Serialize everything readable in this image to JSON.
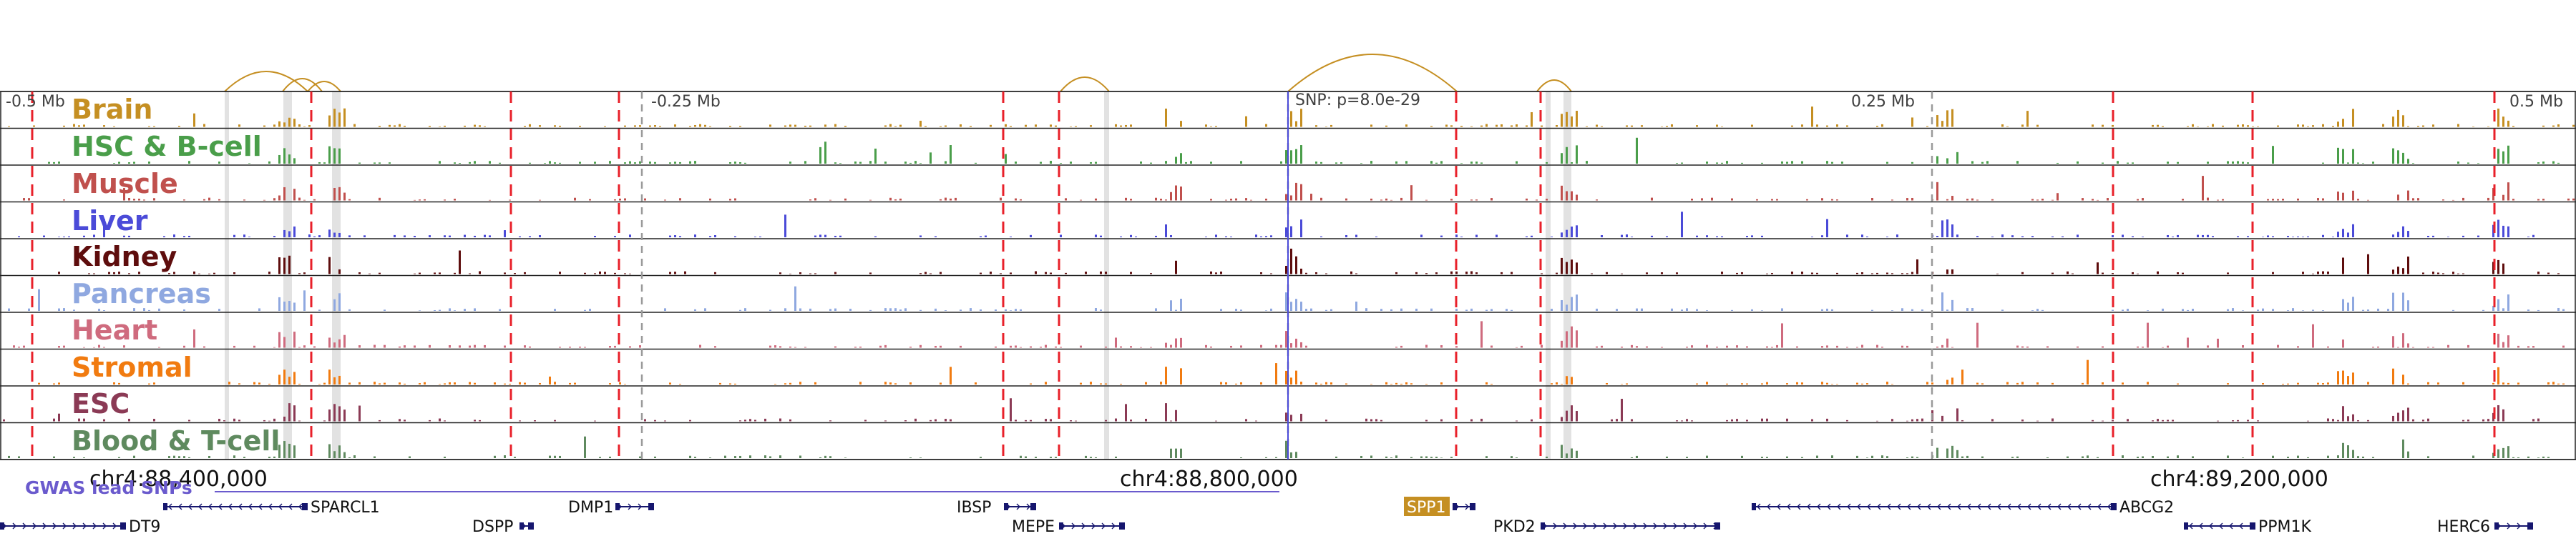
{
  "window": {
    "background": "#ffffff"
  },
  "scale": {
    "left_label": "-0.5 Mb",
    "minus_quarter_label": "-0.25 Mb",
    "plus_quarter_label": "0.25 Mb",
    "right_label": "0.5 Mb",
    "snp_label": "SNP: p=8.0e-29"
  },
  "tracks": [
    {
      "label": "Brain",
      "color": "#c58f22"
    },
    {
      "label": "HSC & B-cell",
      "color": "#4a9e4a"
    },
    {
      "label": "Muscle",
      "color": "#c0504d"
    },
    {
      "label": "Liver",
      "color": "#4b4bd8"
    },
    {
      "label": "Kidney",
      "color": "#5e0d0d"
    },
    {
      "label": "Pancreas",
      "color": "#8fa8e0"
    },
    {
      "label": "Heart",
      "color": "#cf6b7e"
    },
    {
      "label": "Stromal",
      "color": "#f17b10"
    },
    {
      "label": "ESC",
      "color": "#8b3a55"
    },
    {
      "label": "Blood & T-cell",
      "color": "#5f8a5f"
    }
  ],
  "coordinates": [
    "chr4:88,400,000",
    "chr4:88,800,000",
    "chr4:89,200,000"
  ],
  "gwas": {
    "label": "GWAS lead SNPs",
    "color": "#6a5acd"
  },
  "genes": [
    {
      "name": "SPARCL1",
      "strand": "-",
      "highlighted": false
    },
    {
      "name": "DMP1",
      "strand": "+",
      "highlighted": false
    },
    {
      "name": "IBSP",
      "strand": "+",
      "highlighted": false
    },
    {
      "name": "SPP1",
      "strand": "+",
      "highlighted": true
    },
    {
      "name": "ABCG2",
      "strand": "-",
      "highlighted": false
    },
    {
      "name": "DT9",
      "strand": "+",
      "highlighted": false
    },
    {
      "name": "DSPP",
      "strand": "+",
      "highlighted": false
    },
    {
      "name": "MEPE",
      "strand": "+",
      "highlighted": false
    },
    {
      "name": "PKD2",
      "strand": "+",
      "highlighted": false
    },
    {
      "name": "PPM1K",
      "strand": "-",
      "highlighted": false
    },
    {
      "name": "HERC6",
      "strand": "+",
      "highlighted": false
    }
  ],
  "colors": {
    "divider": "#e8202a",
    "gray_marker": "#9a9a9a",
    "highlight_band": "#d6d6d6",
    "loop": "#c58f22",
    "gene": "#16166e",
    "highlight_gene_bg": "#c58f22",
    "text": "#404040"
  }
}
